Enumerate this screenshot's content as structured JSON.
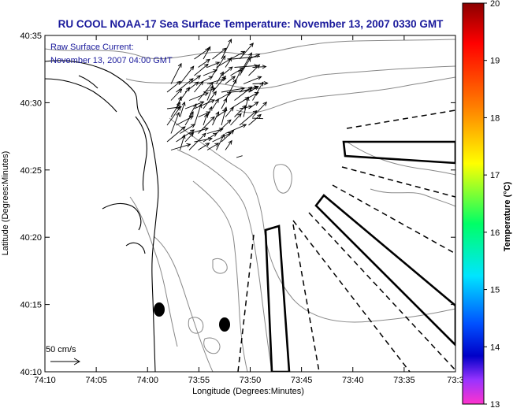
{
  "title": "RU COOL  NOAA-17  Sea Surface Temperature:  November 13, 2007 0330 GMT",
  "legend": {
    "line1": "Raw Surface Current:",
    "line2": "November 13, 2007 04:00 GMT"
  },
  "scale_label": "50 cm/s",
  "axes": {
    "xlabel": "Longitude (Degrees:Minutes)",
    "ylabel": "Latitude (Degrees:Minutes)",
    "xticks": [
      "74:10",
      "74:05",
      "74:00",
      "73:55",
      "73:50",
      "73:45",
      "73:40",
      "73:35",
      "73:3"
    ],
    "yticks": [
      "40:35",
      "40:30",
      "40:25",
      "40:20",
      "40:15",
      "40:10"
    ]
  },
  "colorbar": {
    "label": "Temperature (°C)",
    "ticks": [
      "20",
      "19",
      "18",
      "17",
      "16",
      "15",
      "14",
      "13"
    ],
    "colors": [
      "#8b0000",
      "#ff0000",
      "#ff8000",
      "#ffff00",
      "#00ff66",
      "#00e5ff",
      "#0050ff",
      "#0000c8",
      "#ff33cc"
    ]
  }
}
